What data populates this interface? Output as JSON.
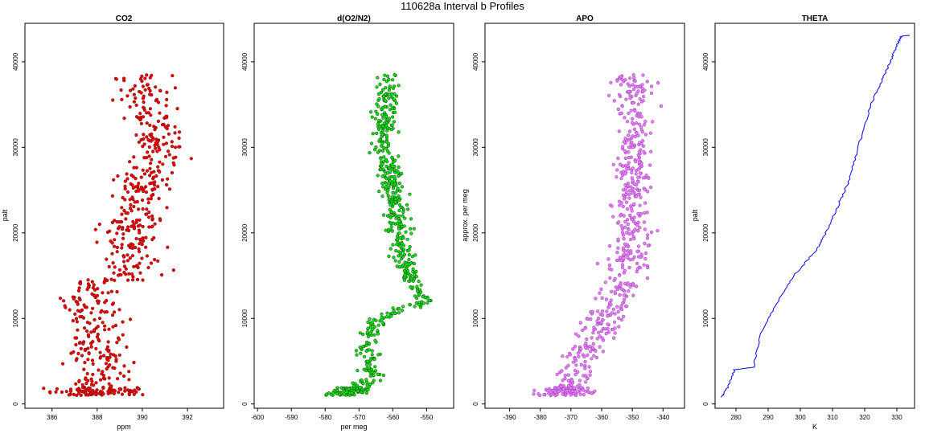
{
  "title": "110628a   Interval b Profiles",
  "colors": {
    "co2_fill": "#ff0000",
    "co2_edge": "#7a1010",
    "o2n2_fill": "#00ee00",
    "o2n2_edge": "#1f4f1f",
    "apo_fill": "#ee82ee",
    "apo_edge": "#9a40c8",
    "theta_line": "#0000ff"
  },
  "chart_data": [
    {
      "type": "scatter",
      "title": "CO2",
      "xlabel": "ppm",
      "ylabel": "palt",
      "xlim": [
        384.8,
        393.6
      ],
      "ylim": [
        -500,
        44500
      ],
      "x_ticks": [
        "386",
        "388",
        "390",
        "392"
      ],
      "x_tick_values": [
        386,
        388,
        390,
        392
      ],
      "y_ticks": [
        "0",
        "10000",
        "20000",
        "30000",
        "40000"
      ],
      "y_tick_values": [
        0,
        10000,
        20000,
        30000,
        40000
      ],
      "profile": [
        [
          1000,
          388.0
        ],
        [
          5000,
          388.1
        ],
        [
          10000,
          387.9
        ],
        [
          14000,
          387.6
        ],
        [
          15000,
          389.6
        ],
        [
          20000,
          389.5
        ],
        [
          25000,
          389.8
        ],
        [
          30000,
          390.8
        ],
        [
          35000,
          390.3
        ],
        [
          38500,
          390.0
        ]
      ],
      "spread_ppm": 0.9
    },
    {
      "type": "scatter",
      "title": "d(O2/N2)",
      "xlabel": "per meg",
      "ylabel": "",
      "xlim": [
        -601,
        -542
      ],
      "ylim": [
        -500,
        44500
      ],
      "x_ticks": [
        "-600",
        "-590",
        "-580",
        "-570",
        "-560",
        "-550"
      ],
      "x_tick_values": [
        -600,
        -590,
        -580,
        -570,
        -560,
        -550
      ],
      "y_ticks": [
        "0",
        "10000",
        "20000",
        "30000",
        "40000"
      ],
      "y_tick_values": [
        0,
        10000,
        20000,
        30000,
        40000
      ],
      "profile": [
        [
          1000,
          -575
        ],
        [
          3000,
          -566
        ],
        [
          7000,
          -568
        ],
        [
          10000,
          -564
        ],
        [
          12000,
          -550
        ],
        [
          14000,
          -555
        ],
        [
          20000,
          -558
        ],
        [
          26000,
          -560
        ],
        [
          30000,
          -563
        ],
        [
          35000,
          -562
        ],
        [
          38500,
          -561
        ]
      ],
      "spread_permeg": 2.5
    },
    {
      "type": "scatter",
      "title": "APO",
      "xlabel": "",
      "ylabel": "approx. per meg",
      "xlim": [
        -398,
        -333
      ],
      "ylim": [
        -500,
        44500
      ],
      "x_ticks": [
        "-390",
        "-380",
        "-370",
        "-360",
        "-350",
        "-340"
      ],
      "x_tick_values": [
        -390,
        -380,
        -370,
        -360,
        -350,
        -340
      ],
      "y_ticks": [
        "0",
        "10000",
        "20000",
        "30000",
        "40000"
      ],
      "y_tick_values": [
        0,
        10000,
        20000,
        30000,
        40000
      ],
      "profile": [
        [
          1000,
          -372
        ],
        [
          5000,
          -367
        ],
        [
          10000,
          -358
        ],
        [
          15000,
          -352
        ],
        [
          20000,
          -350
        ],
        [
          25000,
          -350
        ],
        [
          30000,
          -349
        ],
        [
          35000,
          -350
        ],
        [
          38500,
          -351
        ]
      ],
      "spread_permeg": 4.5
    },
    {
      "type": "line",
      "title": "THETA",
      "xlabel": "K",
      "ylabel": "palt",
      "xlim": [
        273.5,
        335.5
      ],
      "ylim": [
        -500,
        44500
      ],
      "x_ticks": [
        "280",
        "290",
        "300",
        "310",
        "320",
        "330"
      ],
      "x_tick_values": [
        280,
        290,
        300,
        310,
        320,
        330
      ],
      "y_ticks": [
        "0",
        "10000",
        "20000",
        "30000",
        "40000"
      ],
      "y_tick_values": [
        0,
        10000,
        20000,
        30000,
        40000
      ],
      "profile": [
        [
          800,
          275.5
        ],
        [
          2000,
          277.5
        ],
        [
          4000,
          279.5
        ],
        [
          4300,
          285.5
        ],
        [
          8000,
          287.5
        ],
        [
          12000,
          293.0
        ],
        [
          15000,
          298.0
        ],
        [
          18000,
          305.0
        ],
        [
          20000,
          308.0
        ],
        [
          23000,
          311.5
        ],
        [
          26000,
          315.0
        ],
        [
          30000,
          318.0
        ],
        [
          35000,
          322.0
        ],
        [
          38000,
          325.5
        ],
        [
          40000,
          328.0
        ],
        [
          42000,
          330.0
        ],
        [
          43000,
          331.5
        ],
        [
          43100,
          334.0
        ]
      ]
    }
  ]
}
